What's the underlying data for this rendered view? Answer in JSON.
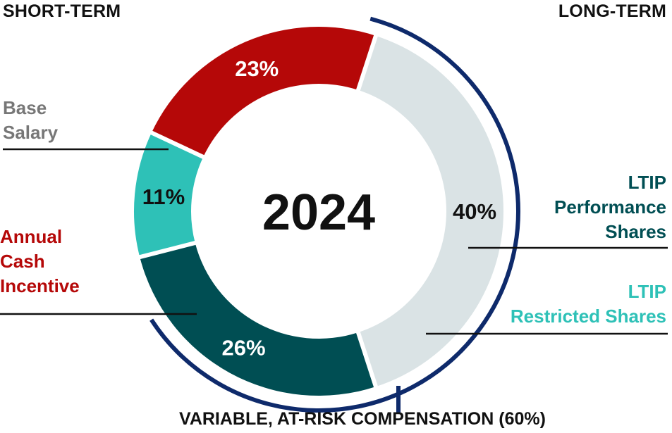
{
  "chart_data": {
    "type": "pie",
    "style": "donut",
    "center_label": "2024",
    "headers": {
      "short_term": "SHORT-TERM",
      "long_term": "LONG-TERM"
    },
    "slices": [
      {
        "name": "Base Salary",
        "label_lines": [
          "Base",
          "Salary"
        ],
        "value": 40,
        "value_label": "40%",
        "color": "#dae3e5",
        "label_color": "#777777",
        "value_text_color": "#111111"
      },
      {
        "name": "LTIP Performance Shares",
        "label_lines": [
          "LTIP",
          "Performance",
          "Shares"
        ],
        "value": 26,
        "value_label": "26%",
        "color": "#004e53",
        "label_color": "#004e53",
        "value_text_color": "#ffffff"
      },
      {
        "name": "LTIP Restricted Shares",
        "label_lines": [
          "LTIP",
          "Restricted Shares"
        ],
        "value": 11,
        "value_label": "11%",
        "color": "#2ec1b7",
        "label_color": "#2ec1b7",
        "value_text_color": "#111111"
      },
      {
        "name": "Annual Cash Incentive",
        "label_lines": [
          "Annual",
          "Cash",
          "Incentive"
        ],
        "value": 23,
        "value_label": "23%",
        "color": "#b50808",
        "label_color": "#b50808",
        "value_text_color": "#ffffff"
      }
    ],
    "variable_bracket": {
      "label": "VARIABLE, AT-RISK COMPENSATION (60%)",
      "value": 60,
      "color": "#0e2a6b"
    }
  }
}
